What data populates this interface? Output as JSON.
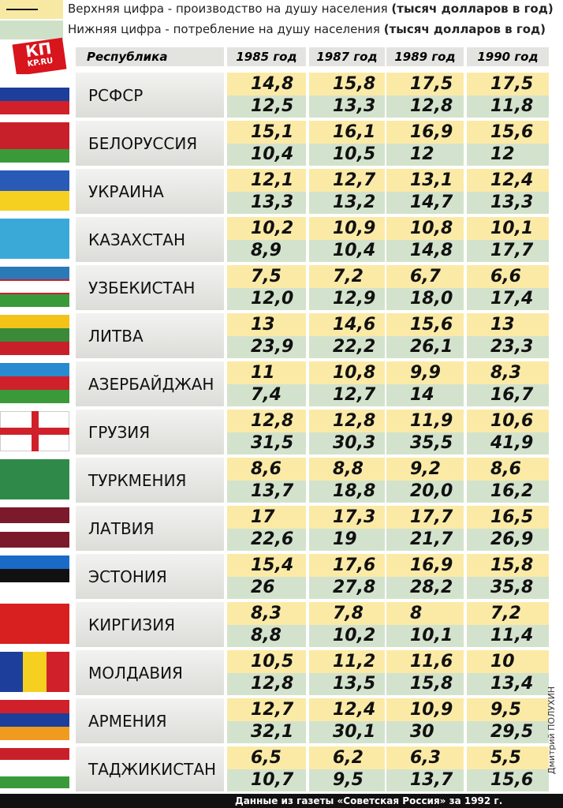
{
  "legend": [
    {
      "text": "Верхняя цифра - производство на душу населения",
      "bold": "(тысяч долларов в год)"
    },
    {
      "text": "Нижняя цифра - потребление на душу населения",
      "bold": "(тысяч долларов в год)"
    }
  ],
  "logo": {
    "top": "КП",
    "bottom": "KP.RU"
  },
  "table": {
    "headers": [
      "Республика",
      "1985 год",
      "1987 год",
      "1989 год",
      "1990 год"
    ],
    "rows": [
      {
        "name": "РСФСР",
        "production": [
          "14,8",
          "15,8",
          "17,5",
          "17,5"
        ],
        "consumption": [
          "12,5",
          "13,3",
          "12,8",
          "11,8"
        ]
      },
      {
        "name": "БЕЛОРУССИЯ",
        "production": [
          "15,1",
          "16,1",
          "16,9",
          "15,6"
        ],
        "consumption": [
          "10,4",
          "10,5",
          "12",
          "12"
        ]
      },
      {
        "name": "УКРАИНА",
        "production": [
          "12,1",
          "12,7",
          "13,1",
          "12,4"
        ],
        "consumption": [
          "13,3",
          "13,2",
          "14,7",
          "13,3"
        ]
      },
      {
        "name": "КАЗАХСТАН",
        "production": [
          "10,2",
          "10,9",
          "10,8",
          "10,1"
        ],
        "consumption": [
          "8,9",
          "10,4",
          "14,8",
          "17,7"
        ]
      },
      {
        "name": "УЗБЕКИСТАН",
        "production": [
          "7,5",
          "7,2",
          "6,7",
          "6,6"
        ],
        "consumption": [
          "12,0",
          "12,9",
          "18,0",
          "17,4"
        ]
      },
      {
        "name": "ЛИТВА",
        "production": [
          "13",
          "14,6",
          "15,6",
          "13"
        ],
        "consumption": [
          "23,9",
          "22,2",
          "26,1",
          "23,3"
        ]
      },
      {
        "name": "АЗЕРБАЙДЖАН",
        "production": [
          "11",
          "10,8",
          "9,9",
          "8,3"
        ],
        "consumption": [
          "7,4",
          "12,7",
          "14",
          "16,7"
        ]
      },
      {
        "name": "ГРУЗИЯ",
        "production": [
          "12,8",
          "12,8",
          "11,9",
          "10,6"
        ],
        "consumption": [
          "31,5",
          "30,3",
          "35,5",
          "41,9"
        ]
      },
      {
        "name": "ТУРКМЕНИЯ",
        "production": [
          "8,6",
          "8,8",
          "9,2",
          "8,6"
        ],
        "consumption": [
          "13,7",
          "18,8",
          "20,0",
          "16,2"
        ]
      },
      {
        "name": "ЛАТВИЯ",
        "production": [
          "17",
          "17,3",
          "17,7",
          "16,5"
        ],
        "consumption": [
          "22,6",
          "19",
          "21,7",
          "26,9"
        ]
      },
      {
        "name": "ЭСТОНИЯ",
        "production": [
          "15,4",
          "17,6",
          "16,9",
          "15,8"
        ],
        "consumption": [
          "26",
          "27,8",
          "28,2",
          "35,8"
        ]
      },
      {
        "name": "КИРГИЗИЯ",
        "production": [
          "8,3",
          "7,8",
          "8",
          "7,2"
        ],
        "consumption": [
          "8,8",
          "10,2",
          "10,1",
          "11,4"
        ]
      },
      {
        "name": "МОЛДАВИЯ",
        "production": [
          "10,5",
          "11,2",
          "11,6",
          "10"
        ],
        "consumption": [
          "12,8",
          "13,5",
          "15,8",
          "13,4"
        ]
      },
      {
        "name": "АРМЕНИЯ",
        "production": [
          "12,7",
          "12,4",
          "10,9",
          "9,5"
        ],
        "consumption": [
          "32,1",
          "30,1",
          "30",
          "29,5"
        ]
      },
      {
        "name": "ТАДЖИКИСТАН",
        "production": [
          "6,5",
          "6,2",
          "6,3",
          "5,5"
        ],
        "consumption": [
          "10,7",
          "9,5",
          "13,7",
          "15,6"
        ]
      }
    ]
  },
  "credit": "Дмитрий ПОЛУХИН",
  "source": "Данные из газеты «Советская Россия» за 1992 г."
}
